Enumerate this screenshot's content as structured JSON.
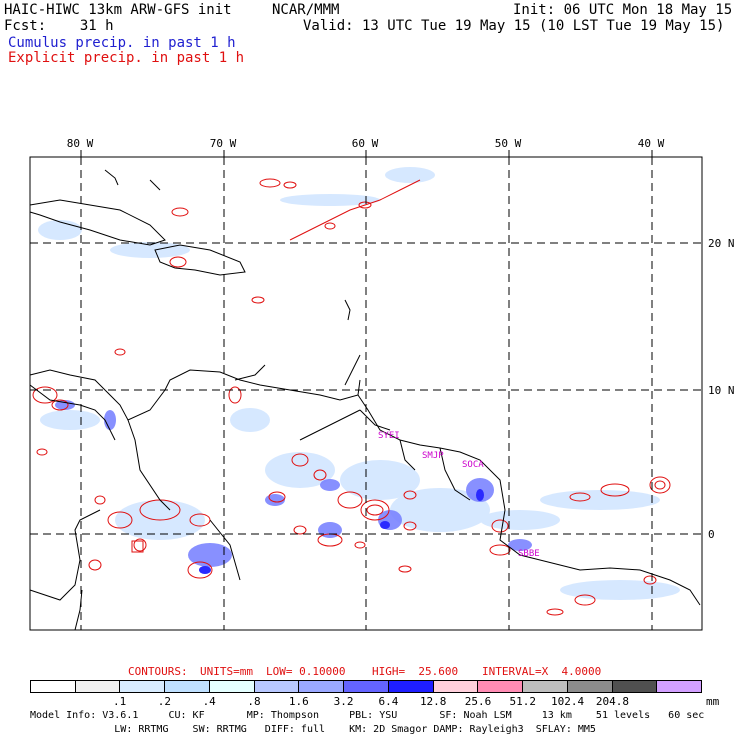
{
  "header": {
    "model": "HAIC-HIWC 13km ARW-GFS init",
    "org": "NCAR/MMM",
    "init": "Init: 06 UTC Mon 18 May 15",
    "fcst": "Fcst:    31 h",
    "valid": "Valid: 13 UTC Tue 19 May 15 (10 LST Tue 19 May 15)",
    "cumulus_label": "Cumulus precip. in past 1 h",
    "explicit_label": "Explicit precip. in past 1 h"
  },
  "colors": {
    "cumulus_text": "#1f1fd0",
    "explicit_text": "#e01010",
    "contour": "#e01010",
    "station": "#cc00cc"
  },
  "map": {
    "lon_labels": [
      "80 W",
      "70 W",
      "60 W",
      "50 W",
      "40 W"
    ],
    "lat_labels": [
      "20 N",
      "10 N",
      "0"
    ],
    "stations": [
      "SYEI",
      "SMJP",
      "SOCA",
      "SBBE"
    ]
  },
  "contour_info": {
    "contours": "CONTOURS:",
    "units": "UNITS=mm",
    "low": "LOW= 0.10000",
    "high": "HIGH=  25.600",
    "interval": "INTERVAL=X  4.0000"
  },
  "legend": {
    "colors": [
      "#ffffff",
      "#f0f0f0",
      "#d8ecff",
      "#bfe0ff",
      "#e4ffff",
      "#b8c8ff",
      "#9aa8ff",
      "#6464ff",
      "#1e1eff",
      "#ffd0dc",
      "#ff8cb4",
      "#bebebe",
      "#8c8c8c",
      "#505050",
      "#d2a0ff"
    ],
    "ticks": [
      ".1",
      ".2",
      ".4",
      ".8",
      "1.6",
      "3.2",
      "6.4",
      "12.8",
      "25.6",
      "51.2",
      "102.4",
      "204.8"
    ],
    "unit": "mm"
  },
  "model_info": {
    "line1": "Model Info: V3.6.1     CU: KF       MP: Thompson     PBL: YSU       SF: Noah LSM     13 km    51 levels   60 sec",
    "line2": "              LW: RRTMG    SW: RRTMG   DIFF: full    KM: 2D Smagor DAMP: Rayleigh3  SFLAY: MM5"
  }
}
